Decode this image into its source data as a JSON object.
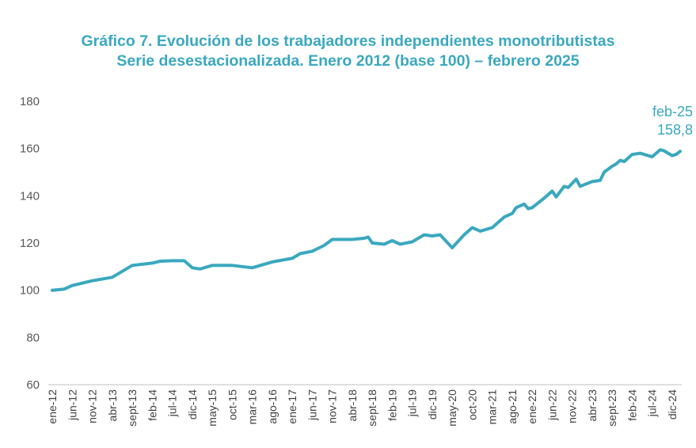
{
  "colors": {
    "title": "#3aa8bf",
    "line": "#3aa8bf",
    "axis": "#bfbfbf"
  },
  "chart_data": {
    "type": "line",
    "title": [
      "Gráfico 7. Evolución de los trabajadores independientes monotributistas",
      "Serie desestacionalizada. Enero 2012 (base 100) – febrero 2025"
    ],
    "xlabel": "",
    "ylabel": "",
    "ylim": [
      60,
      180
    ],
    "yticks": [
      60,
      80,
      100,
      120,
      140,
      160,
      180
    ],
    "x_start": "ene-12",
    "x_end": "feb-25",
    "grid": false,
    "legend": "none",
    "xtick_labels": [
      "ene-12",
      "jun-12",
      "nov-12",
      "abr-13",
      "sept-13",
      "feb-14",
      "jul-14",
      "dic-14",
      "may-15",
      "oct-15",
      "mar-16",
      "ago-16",
      "ene-17",
      "jun-17",
      "nov-17",
      "abr-18",
      "sept-18",
      "feb-19",
      "jul-19",
      "dic-19",
      "may-20",
      "oct-20",
      "mar-21",
      "ago-21",
      "ene-22",
      "jun-22",
      "nov-22",
      "abr-23",
      "sept-23",
      "feb-24",
      "jul-24",
      "dic-24"
    ],
    "series": [
      {
        "points": [
          [
            "ene-12",
            100.0
          ],
          [
            "abr-12",
            100.5
          ],
          [
            "jun-12",
            102.0
          ],
          [
            "nov-12",
            104.0
          ],
          [
            "abr-13",
            105.5
          ],
          [
            "sept-13",
            110.5
          ],
          [
            "feb-14",
            111.5
          ],
          [
            "abr-14",
            112.3
          ],
          [
            "jul-14",
            112.5
          ],
          [
            "oct-14",
            112.5
          ],
          [
            "dic-14",
            109.5
          ],
          [
            "feb-15",
            109.0
          ],
          [
            "may-15",
            110.5
          ],
          [
            "oct-15",
            110.5
          ],
          [
            "mar-16",
            109.5
          ],
          [
            "ago-16",
            112.0
          ],
          [
            "ene-17",
            113.5
          ],
          [
            "mar-17",
            115.5
          ],
          [
            "jun-17",
            116.5
          ],
          [
            "sept-17",
            119.0
          ],
          [
            "nov-17",
            121.5
          ],
          [
            "abr-18",
            121.5
          ],
          [
            "jul-18",
            122.0
          ],
          [
            "ago-18",
            122.5
          ],
          [
            "sept-18",
            120.0
          ],
          [
            "dic-18",
            119.5
          ],
          [
            "feb-19",
            121.0
          ],
          [
            "abr-19",
            119.5
          ],
          [
            "jul-19",
            120.5
          ],
          [
            "oct-19",
            123.5
          ],
          [
            "dic-19",
            123.0
          ],
          [
            "feb-20",
            123.5
          ],
          [
            "may-20",
            118.0
          ],
          [
            "ago-20",
            123.5
          ],
          [
            "oct-20",
            126.5
          ],
          [
            "dic-20",
            125.0
          ],
          [
            "mar-21",
            126.5
          ],
          [
            "jun-21",
            131.0
          ],
          [
            "ago-21",
            132.5
          ],
          [
            "sept-21",
            135.0
          ],
          [
            "nov-21",
            136.5
          ],
          [
            "dic-21",
            134.5
          ],
          [
            "ene-22",
            135.0
          ],
          [
            "abr-22",
            139.0
          ],
          [
            "jun-22",
            142.0
          ],
          [
            "jul-22",
            139.5
          ],
          [
            "sept-22",
            144.0
          ],
          [
            "oct-22",
            143.5
          ],
          [
            "dic-22",
            147.0
          ],
          [
            "ene-23",
            144.0
          ],
          [
            "abr-23",
            146.0
          ],
          [
            "jun-23",
            146.5
          ],
          [
            "jul-23",
            150.0
          ],
          [
            "sept-23",
            152.5
          ],
          [
            "oct-23",
            153.5
          ],
          [
            "nov-23",
            155.0
          ],
          [
            "dic-23",
            154.5
          ],
          [
            "feb-24",
            157.5
          ],
          [
            "abr-24",
            158.0
          ],
          [
            "jul-24",
            156.5
          ],
          [
            "sept-24",
            159.5
          ],
          [
            "oct-24",
            159.0
          ],
          [
            "dic-24",
            157.0
          ],
          [
            "ene-25",
            157.5
          ],
          [
            "feb-25",
            158.8
          ]
        ]
      }
    ],
    "annotations": [
      {
        "at": "feb-25",
        "label": "feb-25",
        "value": "158,8"
      }
    ]
  }
}
